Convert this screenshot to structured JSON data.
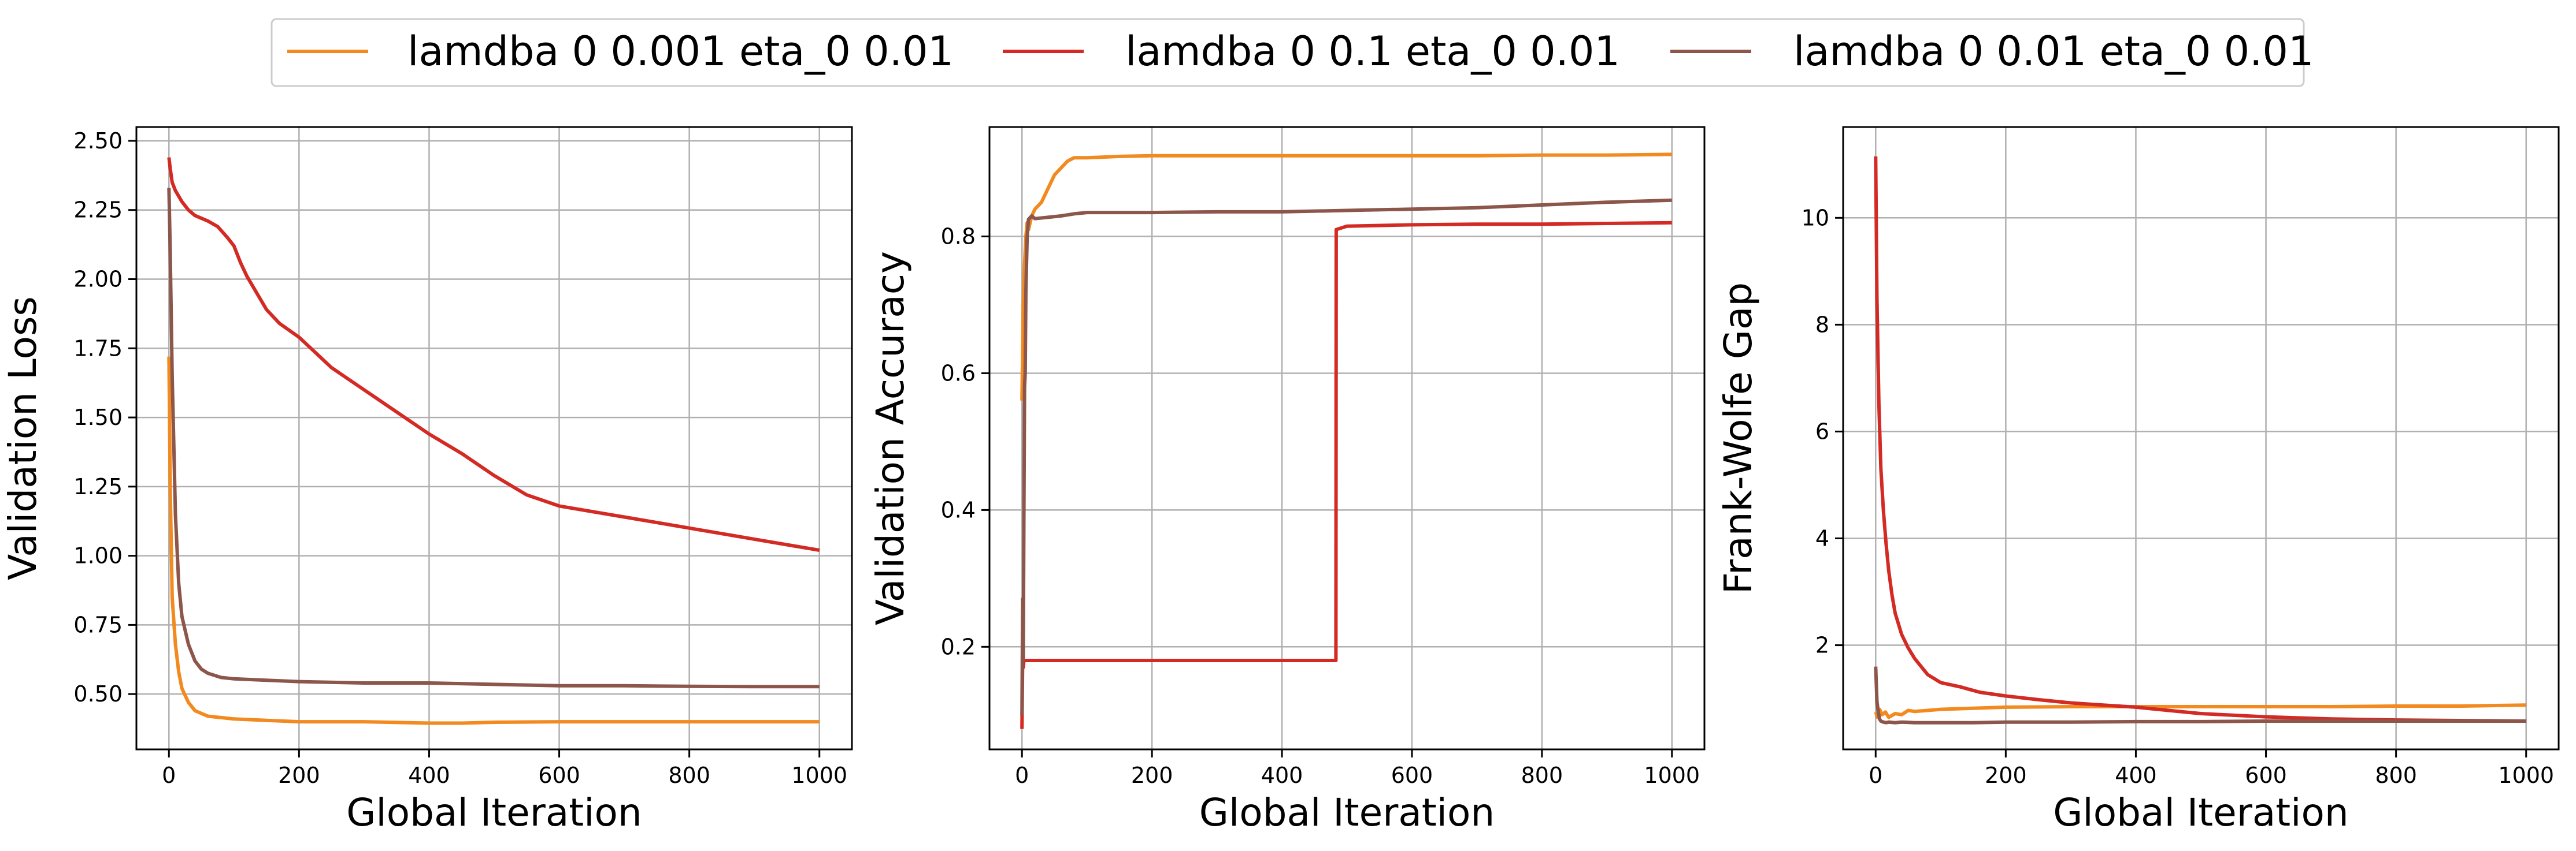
{
  "legend": {
    "placement": "top-center",
    "entries": [
      {
        "label": "lamdba 0 0.001 eta_0 0.01",
        "color": "#f28a1f"
      },
      {
        "label": "lamdba 0 0.1 eta_0 0.01",
        "color": "#d42a24"
      },
      {
        "label": "lamdba 0 0.01 eta_0 0.01",
        "color": "#8c564b"
      }
    ]
  },
  "chart_data": [
    {
      "type": "line",
      "xlabel": "Global Iteration",
      "ylabel": "Validation Loss",
      "xlim": [
        -50,
        1050
      ],
      "ylim": [
        0.3,
        2.55
      ],
      "xticks": [
        0,
        200,
        400,
        600,
        800,
        1000
      ],
      "xtick_labels": [
        "0",
        "200",
        "400",
        "600",
        "800",
        "1000"
      ],
      "yticks": [
        0.5,
        0.75,
        1.0,
        1.25,
        1.5,
        1.75,
        2.0,
        2.25,
        2.5
      ],
      "ytick_labels": [
        "0.50",
        "0.75",
        "1.00",
        "1.25",
        "1.50",
        "1.75",
        "2.00",
        "2.25",
        "2.50"
      ],
      "grid": true,
      "series": [
        {
          "name": "lamdba 0 0.001 eta_0 0.01",
          "color": "#f28a1f",
          "x": [
            0,
            2,
            5,
            10,
            15,
            20,
            30,
            40,
            50,
            60,
            80,
            100,
            150,
            200,
            300,
            400,
            450,
            500,
            600,
            700,
            800,
            900,
            1000
          ],
          "y": [
            1.72,
            1.25,
            0.85,
            0.68,
            0.58,
            0.52,
            0.47,
            0.44,
            0.43,
            0.42,
            0.415,
            0.41,
            0.405,
            0.4,
            0.4,
            0.395,
            0.395,
            0.398,
            0.4,
            0.4,
            0.4,
            0.4,
            0.4
          ]
        },
        {
          "name": "lamdba 0 0.1 eta_0 0.01",
          "color": "#d42a24",
          "x": [
            0,
            2,
            5,
            10,
            20,
            30,
            40,
            60,
            75,
            90,
            100,
            110,
            120,
            130,
            150,
            170,
            200,
            250,
            300,
            350,
            400,
            450,
            500,
            550,
            600,
            650,
            700,
            750,
            800,
            850,
            900,
            950,
            1000
          ],
          "y": [
            2.44,
            2.4,
            2.35,
            2.32,
            2.28,
            2.25,
            2.23,
            2.21,
            2.19,
            2.15,
            2.12,
            2.06,
            2.01,
            1.97,
            1.89,
            1.84,
            1.79,
            1.68,
            1.6,
            1.52,
            1.44,
            1.37,
            1.29,
            1.22,
            1.18,
            1.16,
            1.14,
            1.12,
            1.1,
            1.08,
            1.06,
            1.04,
            1.02
          ]
        },
        {
          "name": "lamdba 0 0.01 eta_0 0.01",
          "color": "#8c564b",
          "x": [
            0,
            2,
            5,
            8,
            10,
            15,
            20,
            30,
            40,
            50,
            60,
            80,
            100,
            150,
            200,
            300,
            400,
            500,
            600,
            700,
            800,
            900,
            1000
          ],
          "y": [
            2.33,
            2.1,
            1.65,
            1.35,
            1.15,
            0.9,
            0.78,
            0.68,
            0.62,
            0.59,
            0.575,
            0.56,
            0.555,
            0.55,
            0.545,
            0.54,
            0.54,
            0.535,
            0.53,
            0.53,
            0.528,
            0.527,
            0.527
          ]
        }
      ]
    },
    {
      "type": "line",
      "xlabel": "Global Iteration",
      "ylabel": "Validation Accuracy",
      "xlim": [
        -50,
        1050
      ],
      "ylim": [
        0.05,
        0.96
      ],
      "xticks": [
        0,
        200,
        400,
        600,
        800,
        1000
      ],
      "xtick_labels": [
        "0",
        "200",
        "400",
        "600",
        "800",
        "1000"
      ],
      "yticks": [
        0.2,
        0.4,
        0.6,
        0.8
      ],
      "ytick_labels": [
        "0.2",
        "0.4",
        "0.6",
        "0.8"
      ],
      "grid": true,
      "series": [
        {
          "name": "lamdba 0 0.001 eta_0 0.01",
          "color": "#f28a1f",
          "x": [
            0,
            2,
            4,
            6,
            8,
            10,
            15,
            20,
            30,
            40,
            50,
            60,
            70,
            80,
            100,
            150,
            200,
            300,
            400,
            500,
            600,
            700,
            800,
            900,
            1000
          ],
          "y": [
            0.56,
            0.7,
            0.76,
            0.8,
            0.82,
            0.81,
            0.83,
            0.84,
            0.85,
            0.87,
            0.89,
            0.9,
            0.91,
            0.915,
            0.915,
            0.917,
            0.918,
            0.918,
            0.918,
            0.918,
            0.918,
            0.918,
            0.919,
            0.919,
            0.92
          ]
        },
        {
          "name": "lamdba 0 0.1 eta_0 0.01",
          "color": "#d42a24",
          "x": [
            0,
            1,
            2,
            3,
            5,
            100,
            300,
            483,
            483.5,
            490,
            500,
            600,
            700,
            800,
            900,
            1000
          ],
          "y": [
            0.08,
            0.18,
            0.17,
            0.18,
            0.18,
            0.18,
            0.18,
            0.18,
            0.81,
            0.812,
            0.815,
            0.817,
            0.818,
            0.818,
            0.819,
            0.82
          ]
        },
        {
          "name": "lamdba 0 0.01 eta_0 0.01",
          "color": "#8c564b",
          "x": [
            0,
            1,
            2,
            3,
            4,
            5,
            6,
            8,
            10,
            15,
            20,
            40,
            60,
            80,
            100,
            150,
            200,
            300,
            400,
            500,
            600,
            700,
            800,
            900,
            1000
          ],
          "y": [
            0.1,
            0.27,
            0.18,
            0.4,
            0.58,
            0.6,
            0.72,
            0.8,
            0.825,
            0.83,
            0.826,
            0.828,
            0.83,
            0.833,
            0.835,
            0.835,
            0.835,
            0.836,
            0.836,
            0.838,
            0.84,
            0.842,
            0.846,
            0.85,
            0.853
          ]
        }
      ]
    },
    {
      "type": "line",
      "xlabel": "Global Iteration",
      "ylabel": "Frank-Wolfe Gap",
      "xlim": [
        -50,
        1050
      ],
      "ylim": [
        0.05,
        11.7
      ],
      "xticks": [
        0,
        200,
        400,
        600,
        800,
        1000
      ],
      "xtick_labels": [
        "0",
        "200",
        "400",
        "600",
        "800",
        "1000"
      ],
      "yticks": [
        2,
        4,
        6,
        8,
        10
      ],
      "ytick_labels": [
        "2",
        "4",
        "6",
        "8",
        "10"
      ],
      "grid": true,
      "series": [
        {
          "name": "lamdba 0 0.001 eta_0 0.01",
          "color": "#f28a1f",
          "x": [
            0,
            3,
            6,
            10,
            15,
            20,
            30,
            40,
            50,
            60,
            80,
            100,
            150,
            200,
            300,
            400,
            500,
            600,
            700,
            800,
            900,
            1000
          ],
          "y": [
            0.75,
            0.65,
            0.8,
            0.7,
            0.75,
            0.65,
            0.72,
            0.7,
            0.78,
            0.76,
            0.78,
            0.8,
            0.82,
            0.84,
            0.85,
            0.85,
            0.85,
            0.85,
            0.85,
            0.86,
            0.86,
            0.88
          ]
        },
        {
          "name": "lamdba 0 0.1 eta_0 0.01",
          "color": "#d42a24",
          "x": [
            0,
            2,
            5,
            8,
            12,
            16,
            20,
            25,
            30,
            40,
            50,
            60,
            80,
            100,
            130,
            160,
            200,
            250,
            300,
            350,
            400,
            450,
            500,
            600,
            700,
            800,
            900,
            1000
          ],
          "y": [
            11.15,
            8.5,
            6.5,
            5.3,
            4.5,
            3.9,
            3.4,
            2.95,
            2.6,
            2.2,
            1.95,
            1.75,
            1.45,
            1.3,
            1.22,
            1.12,
            1.05,
            0.98,
            0.92,
            0.88,
            0.84,
            0.78,
            0.72,
            0.66,
            0.62,
            0.6,
            0.59,
            0.58
          ]
        },
        {
          "name": "lamdba 0 0.01 eta_0 0.01",
          "color": "#8c564b",
          "x": [
            0,
            2,
            4,
            6,
            8,
            12,
            16,
            20,
            30,
            40,
            60,
            100,
            150,
            200,
            300,
            400,
            500,
            600,
            700,
            800,
            900,
            1000
          ],
          "y": [
            1.6,
            0.95,
            0.75,
            0.62,
            0.58,
            0.56,
            0.55,
            0.56,
            0.55,
            0.56,
            0.55,
            0.55,
            0.55,
            0.56,
            0.56,
            0.57,
            0.57,
            0.58,
            0.58,
            0.58,
            0.58,
            0.58
          ]
        }
      ]
    }
  ]
}
